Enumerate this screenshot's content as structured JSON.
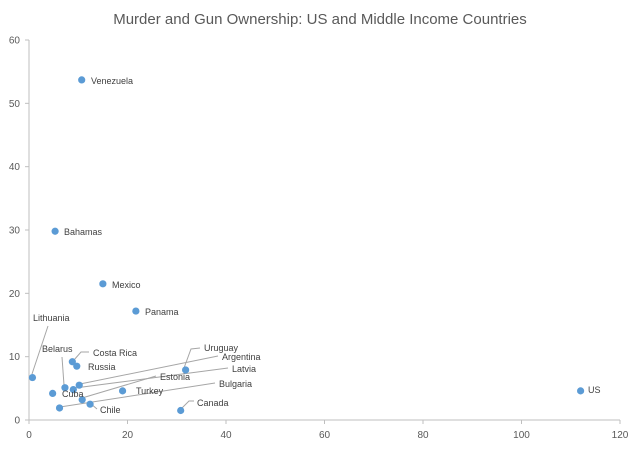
{
  "chart_data": {
    "type": "scatter",
    "title": "Murder and Gun Ownership: US and Middle Income Countries",
    "xlabel": "",
    "ylabel": "",
    "xlim": [
      0,
      120
    ],
    "ylim": [
      0,
      60
    ],
    "x_ticks": [
      0,
      20,
      40,
      60,
      80,
      100,
      120
    ],
    "y_ticks": [
      0,
      10,
      20,
      30,
      40,
      50,
      60
    ],
    "grid": false,
    "legend": "none",
    "colors": {
      "marker": "#5b9bd5",
      "axis": "#bfbfbf",
      "text": "#595959",
      "leader": "#a6a6a6"
    },
    "points": [
      {
        "label": "Venezuela",
        "x": 10.7,
        "y": 53.7
      },
      {
        "label": "Bahamas",
        "x": 5.3,
        "y": 29.8
      },
      {
        "label": "Mexico",
        "x": 15.0,
        "y": 21.5
      },
      {
        "label": "Panama",
        "x": 21.7,
        "y": 17.2
      },
      {
        "label": "Lithuania",
        "x": 0.7,
        "y": 6.7
      },
      {
        "label": "Belarus",
        "x": 7.3,
        "y": 5.1
      },
      {
        "label": "Costa Rica",
        "x": 8.8,
        "y": 9.2
      },
      {
        "label": "Russia",
        "x": 9.7,
        "y": 8.5
      },
      {
        "label": "Cuba",
        "x": 4.8,
        "y": 4.2
      },
      {
        "label": "Uruguay",
        "x": 31.8,
        "y": 7.9
      },
      {
        "label": "Argentina",
        "x": 10.2,
        "y": 5.5
      },
      {
        "label": "Latvia",
        "x": 9.0,
        "y": 4.8
      },
      {
        "label": "Estonia",
        "x": 10.8,
        "y": 3.2
      },
      {
        "label": "Turkey",
        "x": 19.0,
        "y": 4.6
      },
      {
        "label": "Bulgaria",
        "x": 6.2,
        "y": 1.9
      },
      {
        "label": "Chile",
        "x": 12.4,
        "y": 2.5
      },
      {
        "label": "Canada",
        "x": 30.8,
        "y": 1.5
      },
      {
        "label": "US",
        "x": 112.0,
        "y": 4.6
      }
    ]
  }
}
